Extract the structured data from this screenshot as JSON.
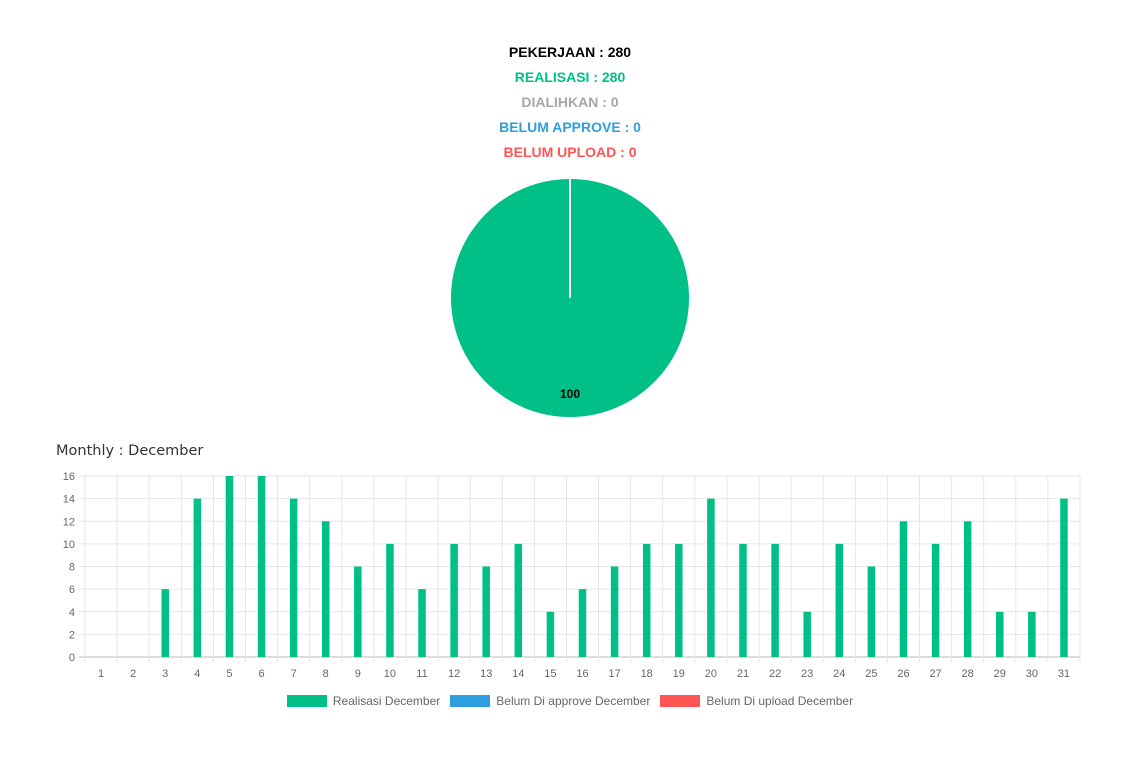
{
  "summary": {
    "pekerjaan": "PEKERJAAN : 280",
    "realisasi": "REALISASI : 280",
    "dialihkan": "DIALIHKAN : 0",
    "belum_approve": "BELUM APPROVE : 0",
    "belum_upload": "BELUM UPLOAD : 0"
  },
  "colors": {
    "black": "#000000",
    "green": "#00bf87",
    "gray": "#a6a6a6",
    "blue": "#2e9ee0",
    "red": "#ff5555"
  },
  "monthly": {
    "title": "Monthly : December"
  },
  "chart_data": [
    {
      "type": "pie",
      "slices": [
        {
          "label": "",
          "value": 100,
          "color": "#00bf87"
        }
      ],
      "data_labels": [
        "100"
      ]
    },
    {
      "type": "bar",
      "categories": [
        "1",
        "2",
        "3",
        "4",
        "5",
        "6",
        "7",
        "8",
        "9",
        "10",
        "11",
        "12",
        "13",
        "14",
        "15",
        "16",
        "17",
        "18",
        "19",
        "20",
        "21",
        "22",
        "23",
        "24",
        "25",
        "26",
        "27",
        "28",
        "29",
        "30",
        "31"
      ],
      "series": [
        {
          "name": "Realisasi December",
          "color": "#00bf87",
          "values": [
            0,
            0,
            6,
            14,
            16,
            16,
            14,
            12,
            8,
            10,
            6,
            10,
            8,
            10,
            4,
            6,
            8,
            10,
            10,
            14,
            10,
            10,
            4,
            10,
            8,
            12,
            10,
            12,
            4,
            4,
            14
          ]
        },
        {
          "name": "Belum Di approve December",
          "color": "#2e9ee0",
          "values": [
            0,
            0,
            0,
            0,
            0,
            0,
            0,
            0,
            0,
            0,
            0,
            0,
            0,
            0,
            0,
            0,
            0,
            0,
            0,
            0,
            0,
            0,
            0,
            0,
            0,
            0,
            0,
            0,
            0,
            0,
            0
          ]
        },
        {
          "name": "Belum Di upload December",
          "color": "#ff5555",
          "values": [
            0,
            0,
            0,
            0,
            0,
            0,
            0,
            0,
            0,
            0,
            0,
            0,
            0,
            0,
            0,
            0,
            0,
            0,
            0,
            0,
            0,
            0,
            0,
            0,
            0,
            0,
            0,
            0,
            0,
            0,
            0
          ]
        }
      ],
      "ylim": [
        0,
        16
      ],
      "yticks": [
        "0",
        "2",
        "4",
        "6",
        "8",
        "10",
        "12",
        "14",
        "16"
      ],
      "grid": true,
      "legend": "bottom"
    }
  ]
}
